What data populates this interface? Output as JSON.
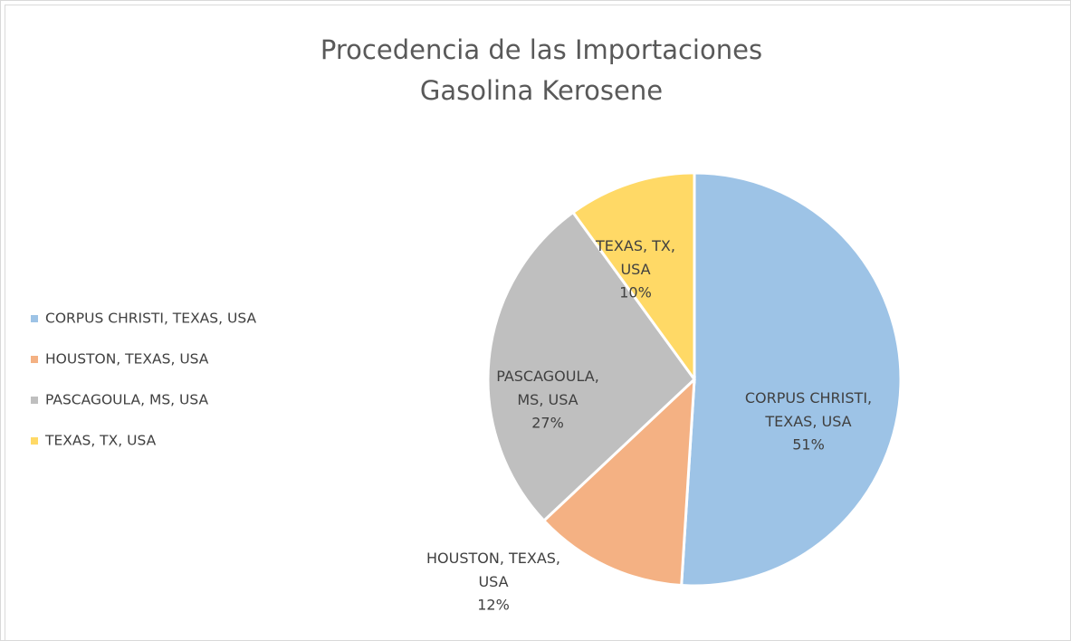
{
  "chart_data": {
    "type": "pie",
    "title": [
      "Procedencia de las Importaciones",
      "Gasolina Kerosene"
    ],
    "categories": [
      "CORPUS CHRISTI, TEXAS, USA",
      "HOUSTON, TEXAS, USA",
      "PASCAGOULA, MS, USA",
      "TEXAS, TX, USA"
    ],
    "values": [
      51,
      12,
      27,
      10
    ],
    "value_labels": [
      "51%",
      "12%",
      "27%",
      "10%"
    ],
    "colors": [
      "#9dc3e6",
      "#f4b183",
      "#bfbfbf",
      "#ffd966"
    ],
    "legend": "left"
  }
}
